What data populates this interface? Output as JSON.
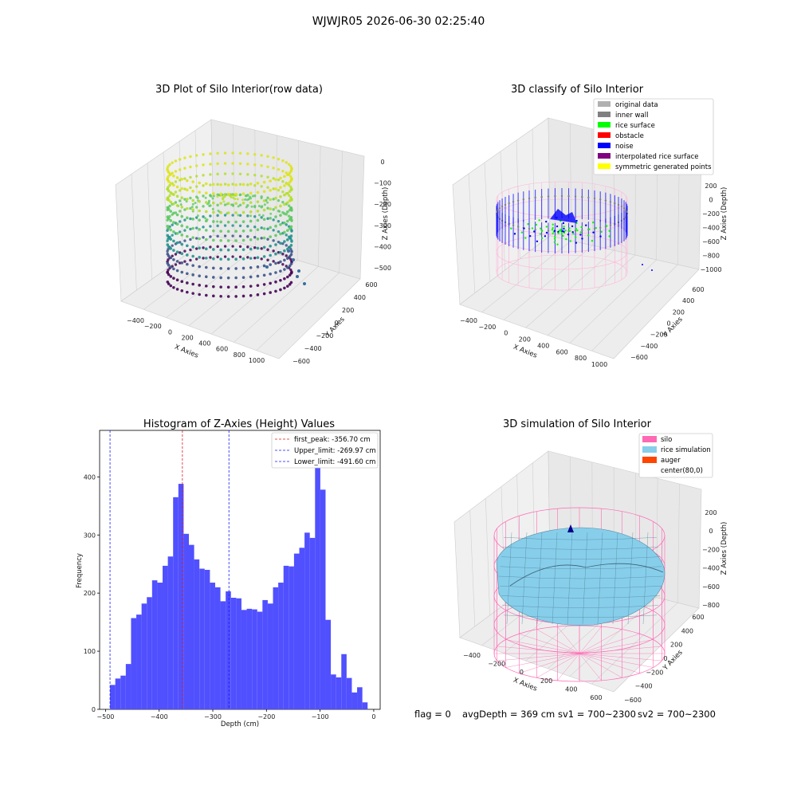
{
  "figure": {
    "suptitle": "WJWJR05 2026-06-30 02:25:40",
    "footer": {
      "flag": "flag = 0",
      "avg": "avgDepth = 369 cm",
      "sv1": "sv1 = 700~2300",
      "sv2": "sv2 = 700~2300"
    }
  },
  "chart_data": [
    {
      "type": "scatter",
      "projection": "3d",
      "title": "3D Plot of Silo Interior(row data)",
      "xlabel": "X Axies",
      "ylabel": "Y Axies",
      "zlabel": "Z Axies (Depth)",
      "x_ticks": [
        "−400",
        "−200",
        "0",
        "200",
        "400",
        "600",
        "800",
        "1000"
      ],
      "y_ticks": [
        "−600",
        "−400",
        "−200",
        "0",
        "200",
        "400",
        "600"
      ],
      "z_ticks": [
        "0",
        "−100",
        "−200",
        "−300",
        "−400",
        "−500"
      ],
      "colormap": "viridis",
      "grid": true
    },
    {
      "type": "scatter",
      "projection": "3d",
      "title": "3D classify of Silo Interior",
      "xlabel": "X Axies",
      "ylabel": "Y Axies",
      "zlabel": "Z Axies (Depth)",
      "x_ticks": [
        "−400",
        "−200",
        "0",
        "200",
        "400",
        "600",
        "800",
        "1000"
      ],
      "y_ticks": [
        "−600",
        "−400",
        "−200",
        "0",
        "200",
        "400",
        "600"
      ],
      "z_ticks": [
        "200",
        "0",
        "−200",
        "−400",
        "−600",
        "−800",
        "−1000"
      ],
      "legend_position": "top-right",
      "legend": [
        {
          "label": "original data",
          "color": "#b0b0b0"
        },
        {
          "label": "inner wall",
          "color": "#808080"
        },
        {
          "label": "rice surface",
          "color": "#00ff00"
        },
        {
          "label": "obstacle",
          "color": "#ff0000"
        },
        {
          "label": "noise",
          "color": "#0000ff"
        },
        {
          "label": "interpolated rice surface",
          "color": "#800080"
        },
        {
          "label": "symmetric generated points",
          "color": "#ffff00"
        }
      ],
      "grid": true
    },
    {
      "type": "bar",
      "title": "Histogram of Z-Axies (Height) Values",
      "xlabel": "Depth (cm)",
      "ylabel": "Frequency",
      "xlim": [
        -511,
        12
      ],
      "ylim": [
        0,
        480
      ],
      "x_ticks": [
        -500,
        -400,
        -300,
        -200,
        -100,
        0
      ],
      "x_tick_labels": [
        "−500",
        "−400",
        "−300",
        "−200",
        "−100",
        "0"
      ],
      "y_ticks": [
        0,
        100,
        200,
        300,
        400
      ],
      "bin_start": -491.6,
      "bin_width": 9.8,
      "bar_color": "#4d4dff",
      "values": [
        42,
        53,
        58,
        78,
        157,
        163,
        182,
        193,
        222,
        218,
        247,
        263,
        365,
        388,
        302,
        283,
        258,
        242,
        240,
        218,
        210,
        186,
        203,
        192,
        191,
        171,
        173,
        172,
        168,
        188,
        182,
        210,
        218,
        247,
        246,
        268,
        278,
        304,
        295,
        452,
        378,
        154,
        60,
        55,
        95,
        54,
        29,
        38,
        12
      ],
      "vlines": [
        {
          "label": "first_peak: -356.70 cm",
          "x": -356.7,
          "color": "#e41a1c"
        },
        {
          "label": "Upper_limit: -269.97 cm",
          "x": -269.97,
          "color": "#1a1aff"
        },
        {
          "label": "Lower_limit: -491.60 cm",
          "x": -491.6,
          "color": "#1a1aff"
        }
      ],
      "legend_position": "top-right"
    },
    {
      "type": "surface",
      "projection": "3d",
      "title": "3D simulation of Silo Interior",
      "xlabel": "X Axies",
      "ylabel": "Y Axies",
      "zlabel": "Z Axies (Depth)",
      "x_ticks": [
        "−400",
        "−200",
        "0",
        "200",
        "400",
        "600"
      ],
      "y_ticks": [
        "−600",
        "−400",
        "−200",
        "0",
        "200",
        "400",
        "600"
      ],
      "z_ticks": [
        "200",
        "0",
        "−200",
        "−400",
        "−600",
        "−800"
      ],
      "legend_position": "top-right",
      "legend": [
        {
          "label": "silo",
          "color": "#ff69b4"
        },
        {
          "label": "rice simulation",
          "color": "#87ceeb"
        },
        {
          "label": "auger",
          "color": "#ff4500"
        },
        {
          "label": "center(80,0)",
          "color": "none"
        }
      ],
      "grid": true
    }
  ]
}
